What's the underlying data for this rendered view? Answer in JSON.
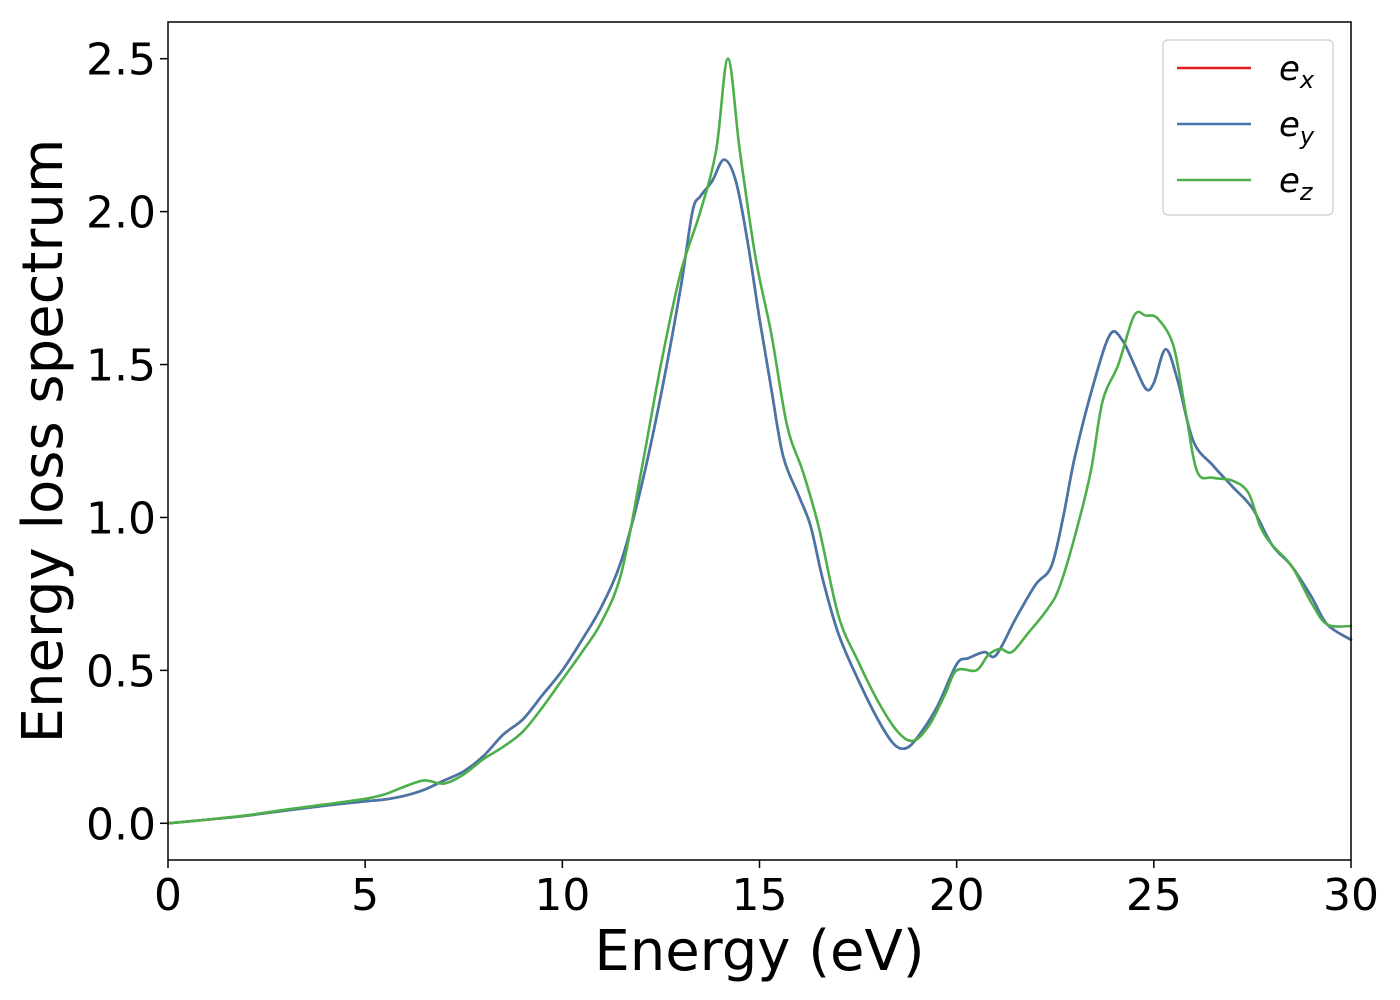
{
  "chart_data": {
    "type": "line",
    "xlabel": "Energy (eV)",
    "ylabel": "Energy loss spectrum",
    "xlim": [
      0,
      30
    ],
    "ylim": [
      -0.12,
      2.62
    ],
    "xticks": [
      0,
      5,
      10,
      15,
      20,
      25,
      30
    ],
    "xtick_labels": [
      "0",
      "5",
      "10",
      "15",
      "20",
      "25",
      "30"
    ],
    "yticks": [
      0.0,
      0.5,
      1.0,
      1.5,
      2.0,
      2.5
    ],
    "ytick_labels": [
      "0.0",
      "0.5",
      "1.0",
      "1.5",
      "2.0",
      "2.5"
    ],
    "grid": false,
    "legend_position": "top-right",
    "series": [
      {
        "name": "e",
        "subscript": "x",
        "color": "#e41a1c",
        "points": [
          [
            0,
            0
          ],
          [
            1,
            0.012
          ],
          [
            2,
            0.025
          ],
          [
            3,
            0.042
          ],
          [
            4,
            0.058
          ],
          [
            5,
            0.072
          ],
          [
            5.5,
            0.078
          ],
          [
            6,
            0.09
          ],
          [
            6.5,
            0.11
          ],
          [
            7,
            0.14
          ],
          [
            7.5,
            0.17
          ],
          [
            8,
            0.22
          ],
          [
            8.5,
            0.29
          ],
          [
            9,
            0.34
          ],
          [
            9.5,
            0.42
          ],
          [
            10,
            0.5
          ],
          [
            10.5,
            0.6
          ],
          [
            11,
            0.71
          ],
          [
            11.5,
            0.86
          ],
          [
            12,
            1.1
          ],
          [
            12.5,
            1.4
          ],
          [
            13,
            1.75
          ],
          [
            13.3,
            2.0
          ],
          [
            13.5,
            2.05
          ],
          [
            13.8,
            2.1
          ],
          [
            14.1,
            2.17
          ],
          [
            14.4,
            2.1
          ],
          [
            14.7,
            1.9
          ],
          [
            15,
            1.65
          ],
          [
            15.3,
            1.42
          ],
          [
            15.6,
            1.2
          ],
          [
            16,
            1.07
          ],
          [
            16.3,
            0.97
          ],
          [
            16.6,
            0.8
          ],
          [
            17,
            0.62
          ],
          [
            17.5,
            0.47
          ],
          [
            18,
            0.34
          ],
          [
            18.4,
            0.26
          ],
          [
            18.7,
            0.245
          ],
          [
            19,
            0.28
          ],
          [
            19.5,
            0.38
          ],
          [
            20,
            0.52
          ],
          [
            20.3,
            0.54
          ],
          [
            20.7,
            0.56
          ],
          [
            21,
            0.55
          ],
          [
            21.5,
            0.67
          ],
          [
            22,
            0.78
          ],
          [
            22.4,
            0.84
          ],
          [
            22.7,
            1.0
          ],
          [
            23,
            1.2
          ],
          [
            23.5,
            1.45
          ],
          [
            23.9,
            1.6
          ],
          [
            24.2,
            1.58
          ],
          [
            24.5,
            1.5
          ],
          [
            24.8,
            1.42
          ],
          [
            25,
            1.44
          ],
          [
            25.3,
            1.55
          ],
          [
            25.6,
            1.45
          ],
          [
            26,
            1.25
          ],
          [
            26.5,
            1.17
          ],
          [
            27,
            1.1
          ],
          [
            27.5,
            1.03
          ],
          [
            28,
            0.91
          ],
          [
            28.5,
            0.84
          ],
          [
            29,
            0.74
          ],
          [
            29.4,
            0.65
          ],
          [
            30,
            0.6
          ]
        ]
      },
      {
        "name": "e",
        "subscript": "y",
        "color": "#4477aa",
        "points": [
          [
            0,
            0
          ],
          [
            1,
            0.012
          ],
          [
            2,
            0.025
          ],
          [
            3,
            0.042
          ],
          [
            4,
            0.058
          ],
          [
            5,
            0.072
          ],
          [
            5.5,
            0.078
          ],
          [
            6,
            0.09
          ],
          [
            6.5,
            0.11
          ],
          [
            7,
            0.14
          ],
          [
            7.5,
            0.17
          ],
          [
            8,
            0.22
          ],
          [
            8.5,
            0.29
          ],
          [
            9,
            0.34
          ],
          [
            9.5,
            0.42
          ],
          [
            10,
            0.5
          ],
          [
            10.5,
            0.6
          ],
          [
            11,
            0.71
          ],
          [
            11.5,
            0.86
          ],
          [
            12,
            1.1
          ],
          [
            12.5,
            1.4
          ],
          [
            13,
            1.75
          ],
          [
            13.3,
            2.0
          ],
          [
            13.5,
            2.05
          ],
          [
            13.8,
            2.1
          ],
          [
            14.1,
            2.17
          ],
          [
            14.4,
            2.1
          ],
          [
            14.7,
            1.9
          ],
          [
            15,
            1.65
          ],
          [
            15.3,
            1.42
          ],
          [
            15.6,
            1.2
          ],
          [
            16,
            1.07
          ],
          [
            16.3,
            0.97
          ],
          [
            16.6,
            0.8
          ],
          [
            17,
            0.62
          ],
          [
            17.5,
            0.47
          ],
          [
            18,
            0.34
          ],
          [
            18.4,
            0.26
          ],
          [
            18.7,
            0.245
          ],
          [
            19,
            0.28
          ],
          [
            19.5,
            0.38
          ],
          [
            20,
            0.52
          ],
          [
            20.3,
            0.54
          ],
          [
            20.7,
            0.56
          ],
          [
            21,
            0.55
          ],
          [
            21.5,
            0.67
          ],
          [
            22,
            0.78
          ],
          [
            22.4,
            0.84
          ],
          [
            22.7,
            1.0
          ],
          [
            23,
            1.2
          ],
          [
            23.5,
            1.45
          ],
          [
            23.9,
            1.6
          ],
          [
            24.2,
            1.58
          ],
          [
            24.5,
            1.5
          ],
          [
            24.8,
            1.42
          ],
          [
            25,
            1.44
          ],
          [
            25.3,
            1.55
          ],
          [
            25.6,
            1.45
          ],
          [
            26,
            1.25
          ],
          [
            26.5,
            1.17
          ],
          [
            27,
            1.1
          ],
          [
            27.5,
            1.03
          ],
          [
            28,
            0.91
          ],
          [
            28.5,
            0.84
          ],
          [
            29,
            0.74
          ],
          [
            29.4,
            0.65
          ],
          [
            30,
            0.6
          ]
        ]
      },
      {
        "name": "e",
        "subscript": "z",
        "color": "#4daf4a",
        "points": [
          [
            0,
            0
          ],
          [
            1,
            0.012
          ],
          [
            2,
            0.026
          ],
          [
            3,
            0.045
          ],
          [
            4,
            0.062
          ],
          [
            5,
            0.08
          ],
          [
            5.5,
            0.095
          ],
          [
            6,
            0.12
          ],
          [
            6.5,
            0.14
          ],
          [
            7,
            0.13
          ],
          [
            7.5,
            0.16
          ],
          [
            8,
            0.21
          ],
          [
            8.5,
            0.25
          ],
          [
            9,
            0.3
          ],
          [
            9.5,
            0.38
          ],
          [
            10,
            0.47
          ],
          [
            10.5,
            0.56
          ],
          [
            11,
            0.66
          ],
          [
            11.5,
            0.82
          ],
          [
            12,
            1.15
          ],
          [
            12.5,
            1.5
          ],
          [
            13,
            1.8
          ],
          [
            13.5,
            2.0
          ],
          [
            13.9,
            2.2
          ],
          [
            14.2,
            2.5
          ],
          [
            14.5,
            2.2
          ],
          [
            14.9,
            1.85
          ],
          [
            15.3,
            1.6
          ],
          [
            15.7,
            1.3
          ],
          [
            16.1,
            1.15
          ],
          [
            16.5,
            0.97
          ],
          [
            17,
            0.68
          ],
          [
            17.5,
            0.53
          ],
          [
            18,
            0.4
          ],
          [
            18.5,
            0.3
          ],
          [
            18.9,
            0.27
          ],
          [
            19.3,
            0.32
          ],
          [
            19.7,
            0.42
          ],
          [
            20,
            0.5
          ],
          [
            20.5,
            0.5
          ],
          [
            20.8,
            0.55
          ],
          [
            21.1,
            0.57
          ],
          [
            21.4,
            0.56
          ],
          [
            21.8,
            0.62
          ],
          [
            22.3,
            0.7
          ],
          [
            22.6,
            0.77
          ],
          [
            23,
            0.94
          ],
          [
            23.4,
            1.15
          ],
          [
            23.7,
            1.38
          ],
          [
            24.1,
            1.5
          ],
          [
            24.5,
            1.66
          ],
          [
            24.8,
            1.66
          ],
          [
            25.1,
            1.65
          ],
          [
            25.5,
            1.56
          ],
          [
            25.8,
            1.35
          ],
          [
            26.1,
            1.15
          ],
          [
            26.5,
            1.13
          ],
          [
            27,
            1.12
          ],
          [
            27.4,
            1.08
          ],
          [
            27.7,
            0.97
          ],
          [
            28,
            0.91
          ],
          [
            28.5,
            0.84
          ],
          [
            29,
            0.72
          ],
          [
            29.4,
            0.65
          ],
          [
            30,
            0.645
          ]
        ]
      }
    ]
  }
}
